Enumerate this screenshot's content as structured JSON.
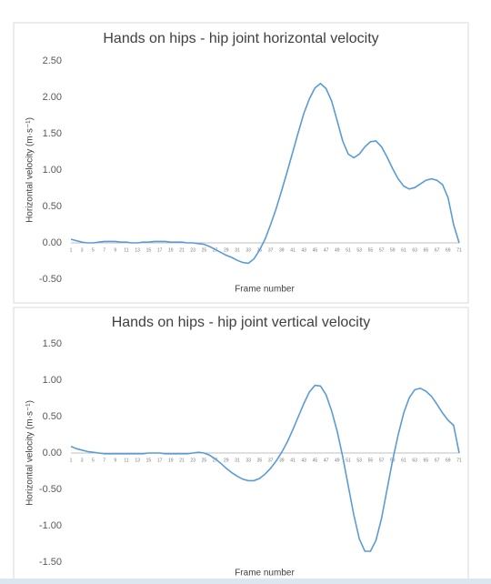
{
  "chart_data": [
    {
      "type": "line",
      "title": "Hands on hips - hip joint horizontal velocity",
      "x_label": "Frame number",
      "y_label": "Horizontal velocity (m·s⁻¹)",
      "categories": [
        "1",
        null,
        "3",
        null,
        "5",
        null,
        "7",
        null,
        "9",
        null,
        "11",
        null,
        "13",
        null,
        "15",
        null,
        "17",
        null,
        "19",
        null,
        "21",
        null,
        "23",
        null,
        "25",
        null,
        "27",
        null,
        "29",
        null,
        "31",
        null,
        "33",
        null,
        "35",
        null,
        "37",
        null,
        "39",
        null,
        "41",
        null,
        "43",
        null,
        "45",
        null,
        "47",
        null,
        "49",
        null,
        "51",
        null,
        "53",
        null,
        "55",
        null,
        "57",
        null,
        "59",
        null,
        "61",
        null,
        "63",
        null,
        "65",
        null,
        "67",
        null,
        "69",
        null,
        "71"
      ],
      "series": [
        {
          "name": "Horizontal velocity",
          "color": "#5b9bd5",
          "values": [
            0.05,
            0.03,
            0.01,
            0,
            0,
            0.01,
            0.02,
            0.02,
            0.02,
            0.01,
            0.01,
            0,
            0,
            0.01,
            0.01,
            0.02,
            0.02,
            0.02,
            0.01,
            0.01,
            0.01,
            0,
            0,
            -0.01,
            -0.02,
            -0.05,
            -0.09,
            -0.13,
            -0.17,
            -0.2,
            -0.24,
            -0.27,
            -0.28,
            -0.22,
            -0.1,
            0.05,
            0.25,
            0.47,
            0.72,
            0.98,
            1.25,
            1.52,
            1.78,
            1.98,
            2.13,
            2.19,
            2.12,
            1.95,
            1.68,
            1.4,
            1.22,
            1.17,
            1.22,
            1.32,
            1.39,
            1.4,
            1.32,
            1.18,
            1.02,
            0.88,
            0.78,
            0.74,
            0.76,
            0.81,
            0.86,
            0.88,
            0.86,
            0.8,
            0.62,
            0.25,
            0
          ]
        }
      ],
      "ylim": [
        -0.5,
        2.5
      ],
      "yticks": [
        {
          "value": -0.5,
          "label": "-0.50"
        },
        {
          "value": 0,
          "label": "0.00"
        },
        {
          "value": 0.5,
          "label": "0.50"
        },
        {
          "value": 1,
          "label": "1.00"
        },
        {
          "value": 1.5,
          "label": "1.50"
        },
        {
          "value": 2,
          "label": "2.00"
        },
        {
          "value": 2.5,
          "label": "2.50"
        }
      ],
      "grid": false
    },
    {
      "type": "line",
      "title": "Hands on hips - hip joint vertical velocity",
      "x_label": "Frame number",
      "y_label": "Horizontal velocity (m·s⁻¹)",
      "categories": [
        "1",
        null,
        "3",
        null,
        "5",
        null,
        "7",
        null,
        "9",
        null,
        "11",
        null,
        "13",
        null,
        "15",
        null,
        "17",
        null,
        "19",
        null,
        "21",
        null,
        "23",
        null,
        "25",
        null,
        "27",
        null,
        "29",
        null,
        "31",
        null,
        "33",
        null,
        "35",
        null,
        "37",
        null,
        "39",
        null,
        "41",
        null,
        "43",
        null,
        "45",
        null,
        "47",
        null,
        "49",
        null,
        "51",
        null,
        "53",
        null,
        "55",
        null,
        "57",
        null,
        "59",
        null,
        "61",
        null,
        "63",
        null,
        "65",
        null,
        "67",
        null,
        "69",
        null,
        "71"
      ],
      "series": [
        {
          "name": "Vertical velocity",
          "color": "#5b9bd5",
          "values": [
            0.09,
            0.06,
            0.04,
            0.02,
            0.01,
            0,
            -0.01,
            -0.01,
            -0.01,
            -0.01,
            -0.01,
            -0.01,
            -0.01,
            -0.01,
            0,
            0,
            0,
            -0.01,
            -0.01,
            -0.01,
            -0.01,
            -0.01,
            0,
            0.01,
            0,
            -0.03,
            -0.08,
            -0.14,
            -0.21,
            -0.27,
            -0.32,
            -0.36,
            -0.38,
            -0.38,
            -0.35,
            -0.29,
            -0.21,
            -0.11,
            0.01,
            0.15,
            0.32,
            0.5,
            0.68,
            0.84,
            0.93,
            0.92,
            0.8,
            0.58,
            0.3,
            -0.05,
            -0.45,
            -0.85,
            -1.18,
            -1.35,
            -1.35,
            -1.2,
            -0.9,
            -0.5,
            -0.1,
            0.25,
            0.55,
            0.76,
            0.87,
            0.89,
            0.85,
            0.78,
            0.67,
            0.55,
            0.45,
            0.38,
            0
          ]
        }
      ],
      "ylim": [
        -1.5,
        1.5
      ],
      "yticks": [
        {
          "value": -1.5,
          "label": "-1.50"
        },
        {
          "value": -1,
          "label": "-1.00"
        },
        {
          "value": -0.5,
          "label": "-0.50"
        },
        {
          "value": 0,
          "label": "0.00"
        },
        {
          "value": 0.5,
          "label": "0.50"
        },
        {
          "value": 1,
          "label": "1.00"
        },
        {
          "value": 1.5,
          "label": "1.50"
        }
      ],
      "grid": false
    }
  ]
}
